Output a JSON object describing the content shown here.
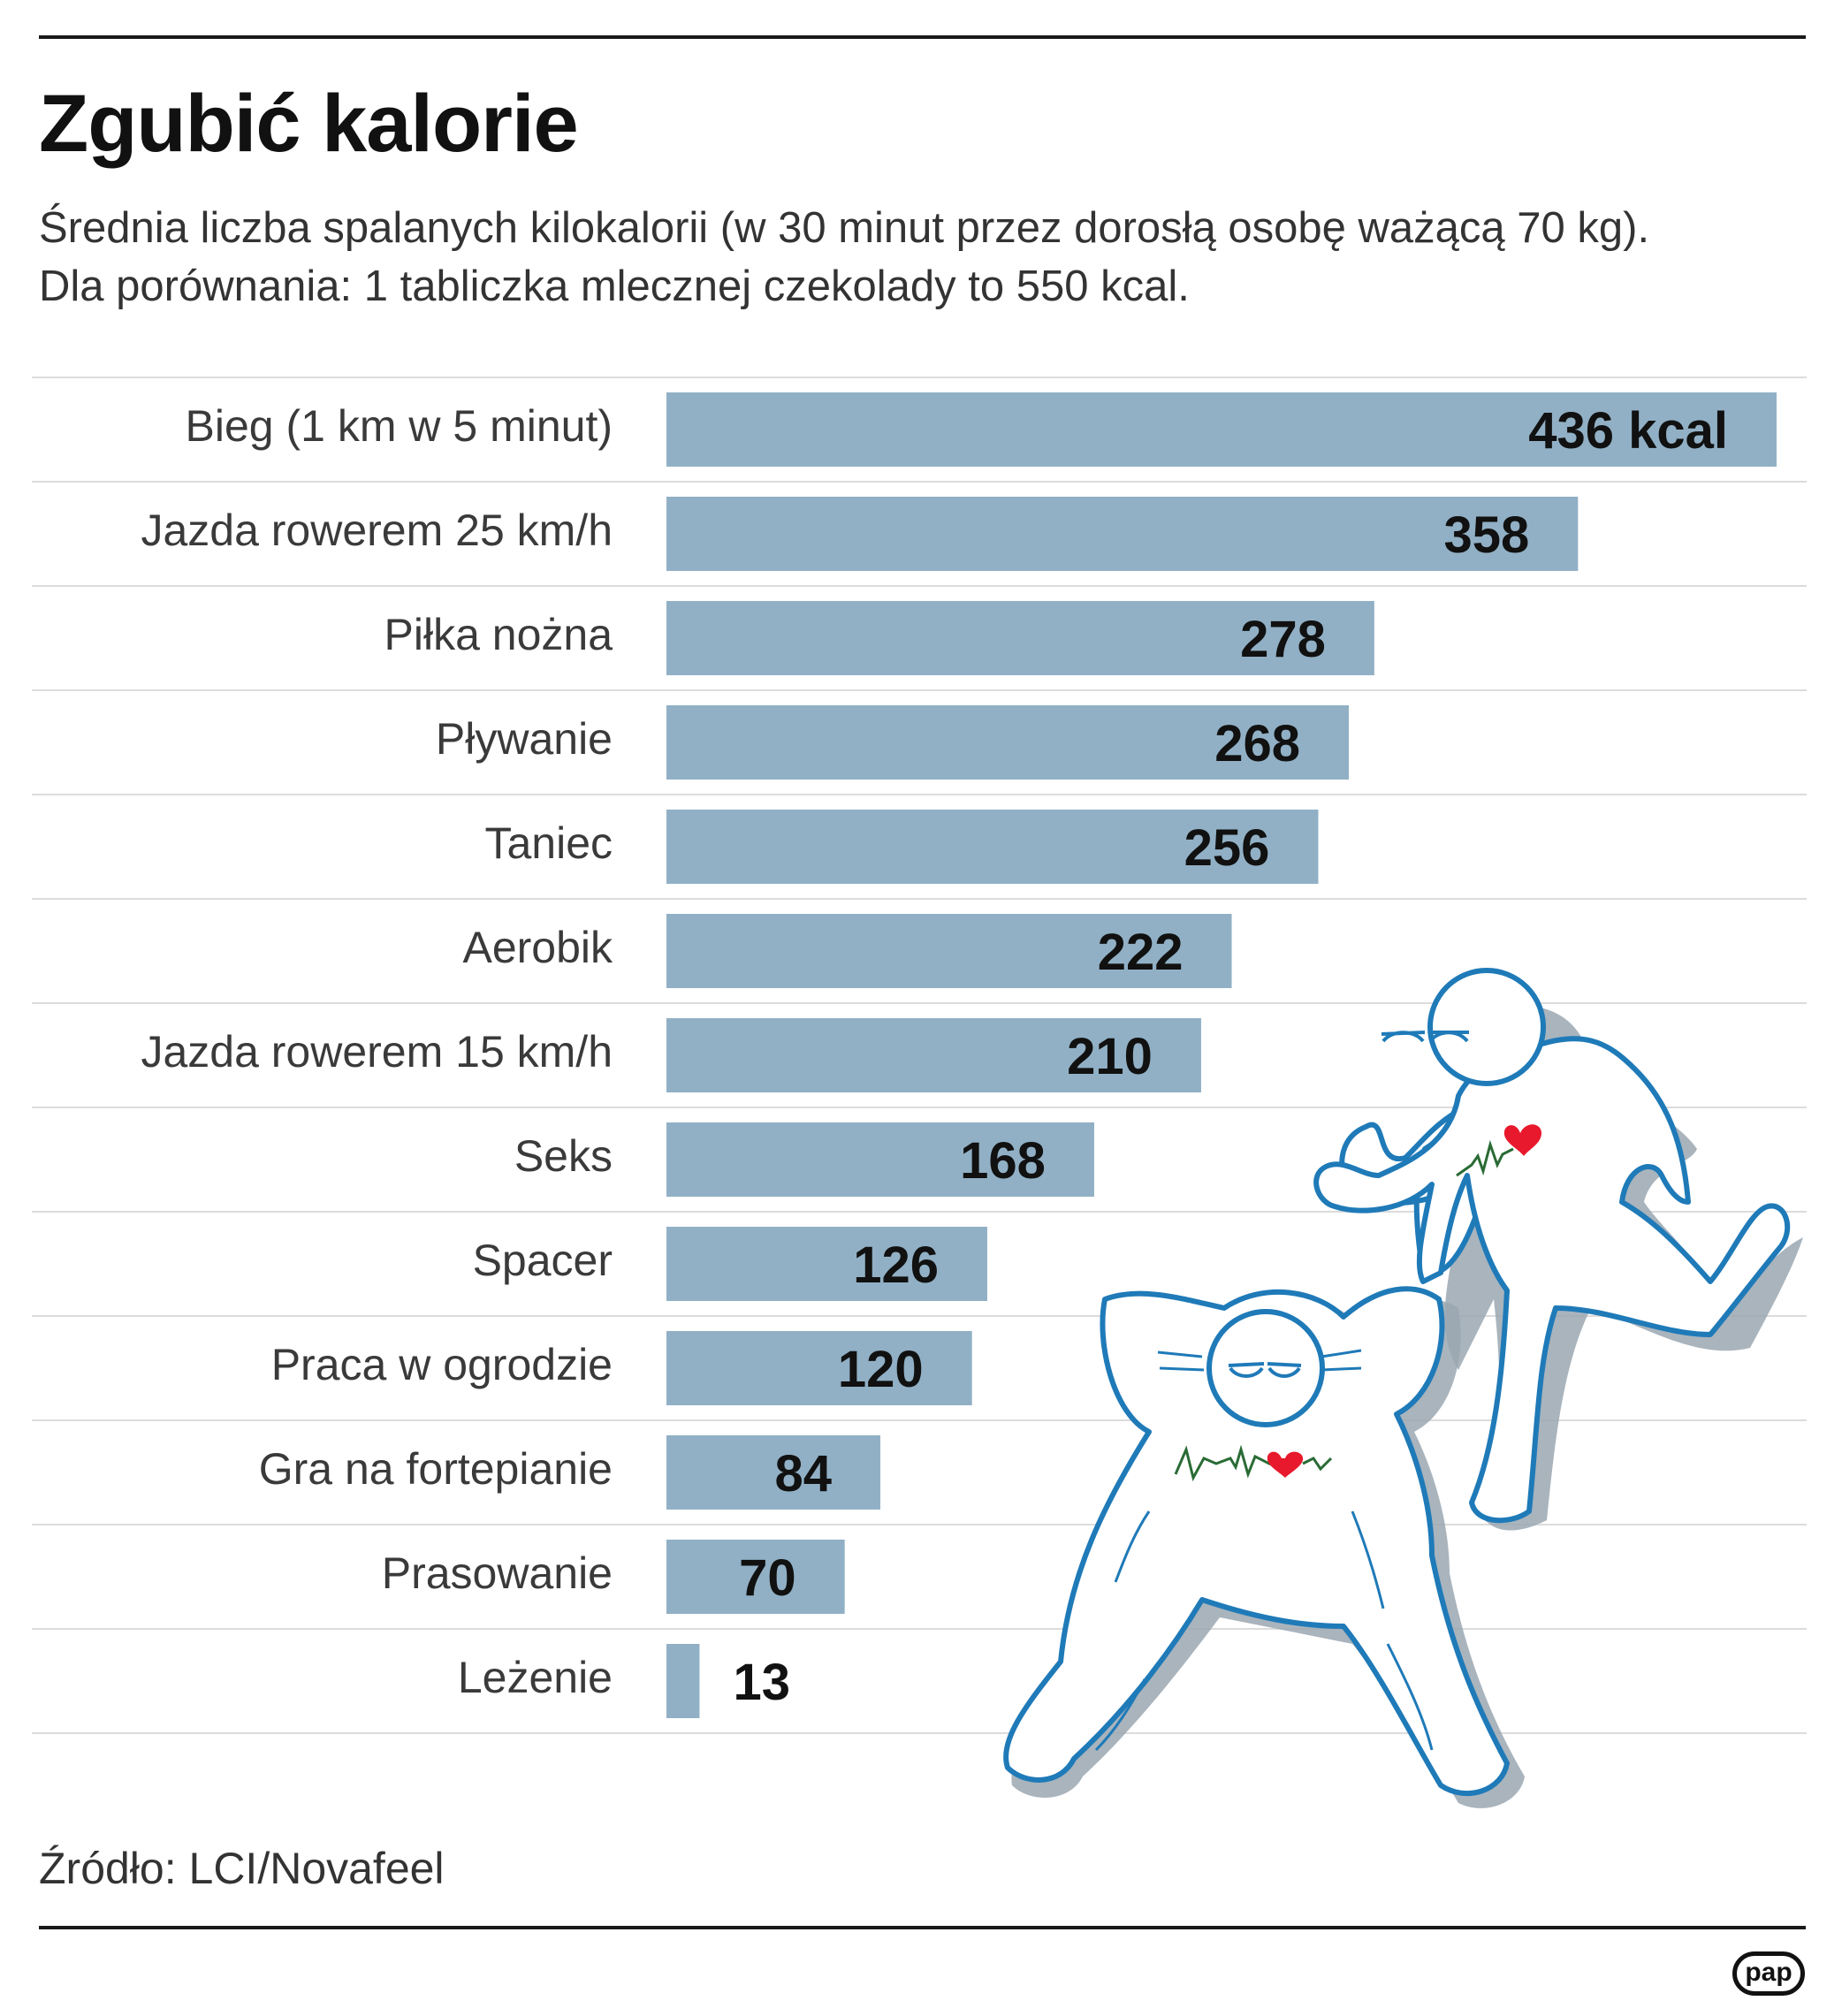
{
  "header": {
    "title": "Zgubić kalorie",
    "subtitle_lines": [
      "Średnia liczba spalanych kilokalorii (w 30 minut przez dorosłą osobę ważącą 70 kg).",
      "Dla porównania: 1 tabliczka mlecznej czekolady to 550 kcal."
    ]
  },
  "chart_data": {
    "type": "bar",
    "orientation": "horizontal",
    "categories": [
      "Bieg (1 km w 5 minut)",
      "Jazda rowerem 25 km/h",
      "Piłka nożna",
      "Pływanie",
      "Taniec",
      "Aerobik",
      "Jazda rowerem 15 km/h",
      "Seks",
      "Spacer",
      "Praca w ogrodzie",
      "Gra na fortepianie",
      "Prasowanie",
      "Leżenie"
    ],
    "values": [
      436,
      358,
      278,
      268,
      256,
      222,
      210,
      168,
      126,
      120,
      84,
      70,
      13
    ],
    "value_labels": [
      "436 kcal",
      "358",
      "278",
      "268",
      "256",
      "222",
      "210",
      "168",
      "126",
      "120",
      "84",
      "70",
      "13"
    ],
    "bar_color": "#91b0c5",
    "grid": "row-separators",
    "legend": "none"
  },
  "illustration": {
    "figures": [
      "standing-figure-icon",
      "lying-figure-icon"
    ],
    "outline_color": "#1f7ab8",
    "shadow_color": "#9aa7b2",
    "heart_color": "#e8192c",
    "pulse_color": "#2a6b35"
  },
  "footer": {
    "source": "Źródło: LCI/Novafeel",
    "logo": "pap"
  }
}
